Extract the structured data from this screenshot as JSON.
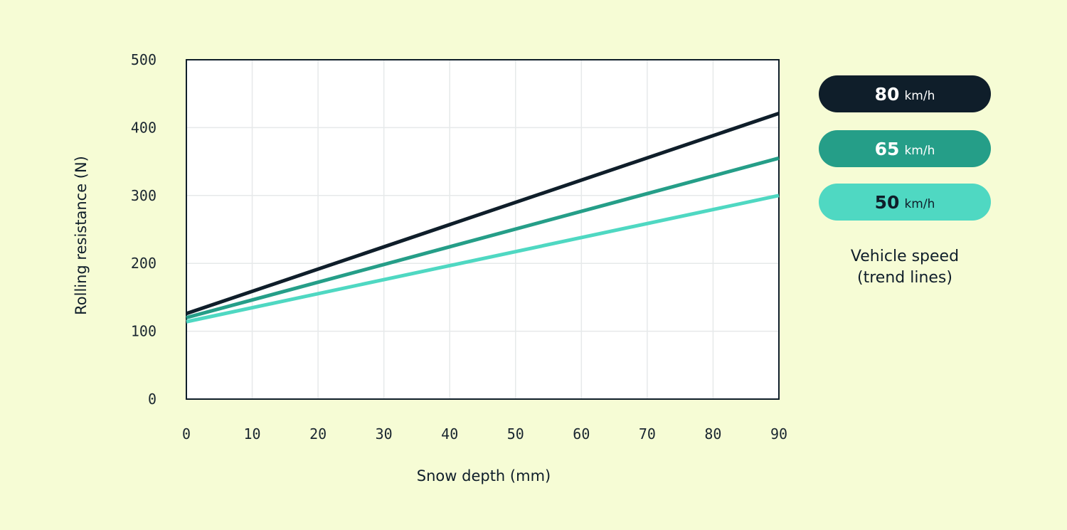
{
  "chart_data": {
    "type": "line",
    "xlabel": "Snow depth (mm)",
    "ylabel": "Rolling resistance (N)",
    "xlim": [
      0,
      90
    ],
    "ylim": [
      0,
      500
    ],
    "x_ticks": [
      0,
      10,
      20,
      30,
      40,
      50,
      60,
      70,
      80,
      90
    ],
    "y_ticks": [
      0,
      100,
      200,
      300,
      400,
      500
    ],
    "grid": true,
    "legend_position": "right",
    "legend_title_line1": "Vehicle speed",
    "legend_title_line2": "(trend lines)",
    "series": [
      {
        "name": "80",
        "unit": "km/h",
        "color": "#0f1e2a",
        "text_color": "#ffffff",
        "x": [
          0,
          90
        ],
        "y": [
          126,
          421
        ]
      },
      {
        "name": "65",
        "unit": "km/h",
        "color": "#259e88",
        "text_color": "#ffffff",
        "x": [
          0,
          90
        ],
        "y": [
          120,
          355
        ]
      },
      {
        "name": "50",
        "unit": "km/h",
        "color": "#4fd8c2",
        "text_color": "#0f1e2a",
        "x": [
          0,
          90
        ],
        "y": [
          114,
          300
        ]
      }
    ]
  }
}
